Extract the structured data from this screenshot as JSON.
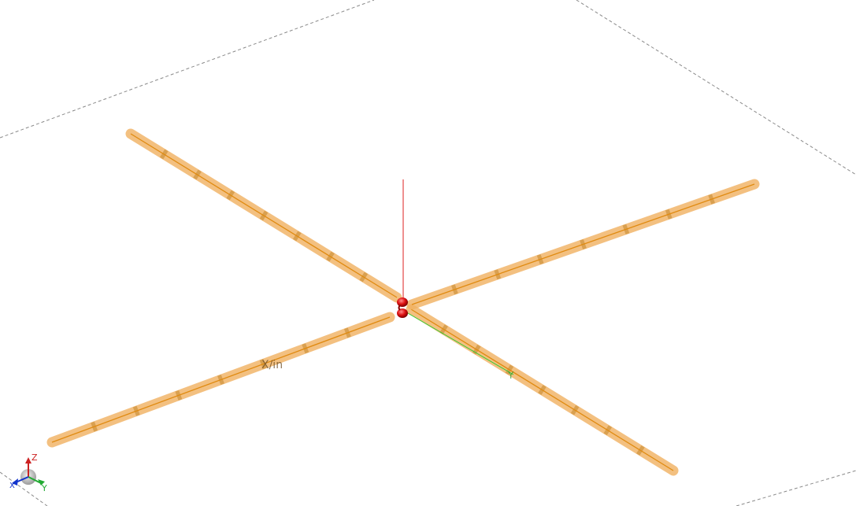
{
  "viewport": {
    "background": "#ffffff",
    "ground_plane_color": "#8a8a8a",
    "rod_color": "#f0b060",
    "rod_core_color": "#e08a10",
    "rod_segment_color": "#c88a30",
    "feed_color": "#dd1111"
  },
  "model_labels": {
    "x_label": "X/in",
    "y_label": "Y"
  },
  "triad": {
    "z_label": "Z",
    "x_label": "X",
    "y_label": "Y",
    "z_color": "#cc2222",
    "x_color": "#1133cc",
    "y_color": "#22aa33"
  },
  "axes": {
    "z_color": "#dd2222",
    "y_color": "#33cc33"
  }
}
